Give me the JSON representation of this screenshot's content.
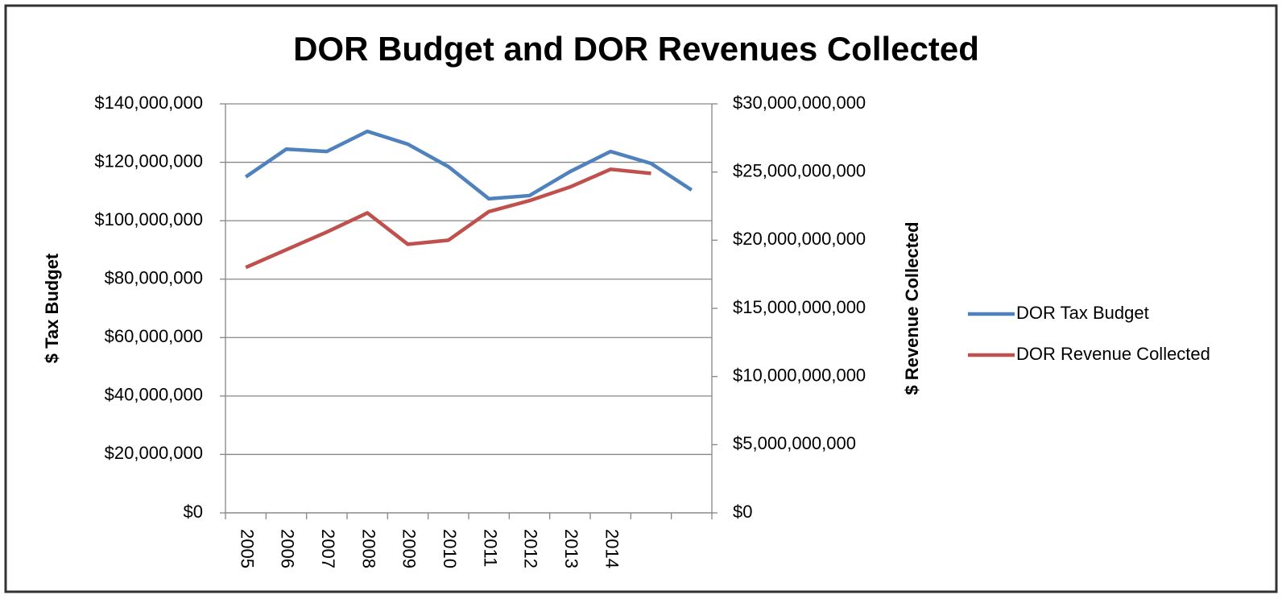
{
  "chart_data": {
    "type": "line",
    "title": "DOR Budget and DOR Revenues Collected",
    "ylabel": "$ Tax Budget",
    "y2label": "$ Revenue Collected",
    "categories": [
      "2005",
      "2006",
      "2007",
      "2008",
      "2009",
      "2010",
      "2011",
      "2012",
      "2013",
      "2014",
      null,
      null
    ],
    "series": [
      {
        "name": "DOR Tax Budget",
        "color": "#4f81bd",
        "values": [
          115000000,
          124500000,
          123700000,
          130600000,
          126200000,
          118500000,
          107500000,
          108600000,
          116800000,
          123700000,
          119600000,
          110500000
        ]
      },
      {
        "name": "DOR Revenue Collected",
        "color": "#c0504d",
        "axis": "y2",
        "values": [
          18000000000,
          19300000000,
          20600000000,
          22000000000,
          19700000000,
          20000000000,
          22100000000,
          22900000000,
          23900000000,
          25200000000,
          24900000000,
          null
        ]
      }
    ],
    "ylim": [
      0,
      140000000
    ],
    "yticks": [
      {
        "value": 0,
        "label": "$0"
      },
      {
        "value": 20000000,
        "label": "$20,000,000"
      },
      {
        "value": 40000000,
        "label": "$40,000,000"
      },
      {
        "value": 60000000,
        "label": "$60,000,000"
      },
      {
        "value": 80000000,
        "label": "$80,000,000"
      },
      {
        "value": 100000000,
        "label": "$100,000,000"
      },
      {
        "value": 120000000,
        "label": "$120,000,000"
      },
      {
        "value": 140000000,
        "label": "$140,000,000"
      }
    ],
    "y2lim": [
      0,
      30000000000
    ],
    "y2ticks": [
      {
        "value": 0,
        "label": "$0"
      },
      {
        "value": 5000000000,
        "label": "$5,000,000,000"
      },
      {
        "value": 10000000000,
        "label": "$10,000,000,000"
      },
      {
        "value": 15000000000,
        "label": "$15,000,000,000"
      },
      {
        "value": 20000000000,
        "label": "$20,000,000,000"
      },
      {
        "value": 25000000000,
        "label": "$25,000,000,000"
      },
      {
        "value": 30000000000,
        "label": "$30,000,000,000"
      }
    ],
    "grid": true,
    "legend": "right"
  }
}
